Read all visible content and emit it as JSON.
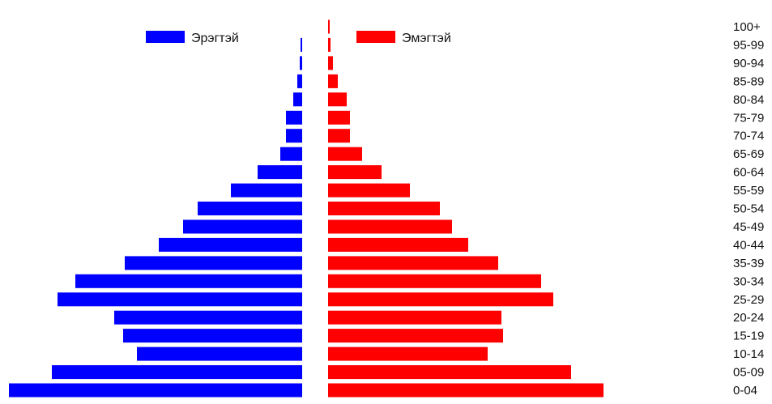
{
  "chart_data": {
    "type": "bar",
    "orientation": "horizontal-population-pyramid",
    "categories": [
      "0-04",
      "05-09",
      "10-14",
      "15-19",
      "20-24",
      "25-29",
      "30-34",
      "35-39",
      "40-44",
      "45-49",
      "50-54",
      "55-59",
      "60-64",
      "65-69",
      "70-74",
      "75-79",
      "80-84",
      "85-89",
      "90-94",
      "95-99",
      "100+"
    ],
    "series": [
      {
        "name": "Эрэгтэй",
        "color": "#0000ff",
        "values": [
          362,
          309,
          204,
          221,
          232,
          302,
          280,
          219,
          177,
          147,
          129,
          88,
          55,
          27,
          20,
          20,
          11,
          6,
          3,
          2,
          0
        ]
      },
      {
        "name": "Эмэгтэй",
        "color": "#ff0000",
        "values": [
          340,
          300,
          197,
          216,
          214,
          278,
          263,
          210,
          173,
          153,
          138,
          101,
          66,
          42,
          27,
          27,
          23,
          12,
          6,
          3,
          1
        ]
      }
    ],
    "legend_position": "top",
    "grid": false,
    "axes_visible": false
  }
}
